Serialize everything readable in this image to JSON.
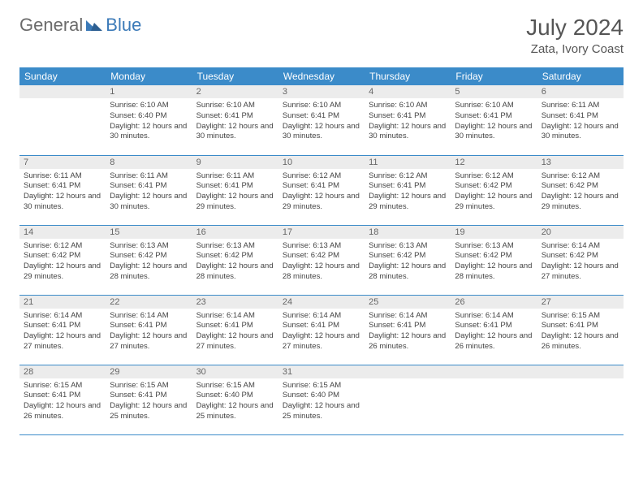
{
  "logo": {
    "general": "General",
    "blue": "Blue"
  },
  "title": "July 2024",
  "location": "Zata, Ivory Coast",
  "colors": {
    "header_bg": "#3b8bc9",
    "header_text": "#ffffff",
    "daynum_bg": "#ececec",
    "border": "#3b8bc9",
    "logo_gray": "#6b6b6b",
    "logo_blue": "#3b7ab8"
  },
  "weekdays": [
    "Sunday",
    "Monday",
    "Tuesday",
    "Wednesday",
    "Thursday",
    "Friday",
    "Saturday"
  ],
  "weeks": [
    [
      {
        "day": "",
        "sunrise": "",
        "sunset": "",
        "daylight": ""
      },
      {
        "day": "1",
        "sunrise": "Sunrise: 6:10 AM",
        "sunset": "Sunset: 6:40 PM",
        "daylight": "Daylight: 12 hours and 30 minutes."
      },
      {
        "day": "2",
        "sunrise": "Sunrise: 6:10 AM",
        "sunset": "Sunset: 6:41 PM",
        "daylight": "Daylight: 12 hours and 30 minutes."
      },
      {
        "day": "3",
        "sunrise": "Sunrise: 6:10 AM",
        "sunset": "Sunset: 6:41 PM",
        "daylight": "Daylight: 12 hours and 30 minutes."
      },
      {
        "day": "4",
        "sunrise": "Sunrise: 6:10 AM",
        "sunset": "Sunset: 6:41 PM",
        "daylight": "Daylight: 12 hours and 30 minutes."
      },
      {
        "day": "5",
        "sunrise": "Sunrise: 6:10 AM",
        "sunset": "Sunset: 6:41 PM",
        "daylight": "Daylight: 12 hours and 30 minutes."
      },
      {
        "day": "6",
        "sunrise": "Sunrise: 6:11 AM",
        "sunset": "Sunset: 6:41 PM",
        "daylight": "Daylight: 12 hours and 30 minutes."
      }
    ],
    [
      {
        "day": "7",
        "sunrise": "Sunrise: 6:11 AM",
        "sunset": "Sunset: 6:41 PM",
        "daylight": "Daylight: 12 hours and 30 minutes."
      },
      {
        "day": "8",
        "sunrise": "Sunrise: 6:11 AM",
        "sunset": "Sunset: 6:41 PM",
        "daylight": "Daylight: 12 hours and 30 minutes."
      },
      {
        "day": "9",
        "sunrise": "Sunrise: 6:11 AM",
        "sunset": "Sunset: 6:41 PM",
        "daylight": "Daylight: 12 hours and 29 minutes."
      },
      {
        "day": "10",
        "sunrise": "Sunrise: 6:12 AM",
        "sunset": "Sunset: 6:41 PM",
        "daylight": "Daylight: 12 hours and 29 minutes."
      },
      {
        "day": "11",
        "sunrise": "Sunrise: 6:12 AM",
        "sunset": "Sunset: 6:41 PM",
        "daylight": "Daylight: 12 hours and 29 minutes."
      },
      {
        "day": "12",
        "sunrise": "Sunrise: 6:12 AM",
        "sunset": "Sunset: 6:42 PM",
        "daylight": "Daylight: 12 hours and 29 minutes."
      },
      {
        "day": "13",
        "sunrise": "Sunrise: 6:12 AM",
        "sunset": "Sunset: 6:42 PM",
        "daylight": "Daylight: 12 hours and 29 minutes."
      }
    ],
    [
      {
        "day": "14",
        "sunrise": "Sunrise: 6:12 AM",
        "sunset": "Sunset: 6:42 PM",
        "daylight": "Daylight: 12 hours and 29 minutes."
      },
      {
        "day": "15",
        "sunrise": "Sunrise: 6:13 AM",
        "sunset": "Sunset: 6:42 PM",
        "daylight": "Daylight: 12 hours and 28 minutes."
      },
      {
        "day": "16",
        "sunrise": "Sunrise: 6:13 AM",
        "sunset": "Sunset: 6:42 PM",
        "daylight": "Daylight: 12 hours and 28 minutes."
      },
      {
        "day": "17",
        "sunrise": "Sunrise: 6:13 AM",
        "sunset": "Sunset: 6:42 PM",
        "daylight": "Daylight: 12 hours and 28 minutes."
      },
      {
        "day": "18",
        "sunrise": "Sunrise: 6:13 AM",
        "sunset": "Sunset: 6:42 PM",
        "daylight": "Daylight: 12 hours and 28 minutes."
      },
      {
        "day": "19",
        "sunrise": "Sunrise: 6:13 AM",
        "sunset": "Sunset: 6:42 PM",
        "daylight": "Daylight: 12 hours and 28 minutes."
      },
      {
        "day": "20",
        "sunrise": "Sunrise: 6:14 AM",
        "sunset": "Sunset: 6:42 PM",
        "daylight": "Daylight: 12 hours and 27 minutes."
      }
    ],
    [
      {
        "day": "21",
        "sunrise": "Sunrise: 6:14 AM",
        "sunset": "Sunset: 6:41 PM",
        "daylight": "Daylight: 12 hours and 27 minutes."
      },
      {
        "day": "22",
        "sunrise": "Sunrise: 6:14 AM",
        "sunset": "Sunset: 6:41 PM",
        "daylight": "Daylight: 12 hours and 27 minutes."
      },
      {
        "day": "23",
        "sunrise": "Sunrise: 6:14 AM",
        "sunset": "Sunset: 6:41 PM",
        "daylight": "Daylight: 12 hours and 27 minutes."
      },
      {
        "day": "24",
        "sunrise": "Sunrise: 6:14 AM",
        "sunset": "Sunset: 6:41 PM",
        "daylight": "Daylight: 12 hours and 27 minutes."
      },
      {
        "day": "25",
        "sunrise": "Sunrise: 6:14 AM",
        "sunset": "Sunset: 6:41 PM",
        "daylight": "Daylight: 12 hours and 26 minutes."
      },
      {
        "day": "26",
        "sunrise": "Sunrise: 6:14 AM",
        "sunset": "Sunset: 6:41 PM",
        "daylight": "Daylight: 12 hours and 26 minutes."
      },
      {
        "day": "27",
        "sunrise": "Sunrise: 6:15 AM",
        "sunset": "Sunset: 6:41 PM",
        "daylight": "Daylight: 12 hours and 26 minutes."
      }
    ],
    [
      {
        "day": "28",
        "sunrise": "Sunrise: 6:15 AM",
        "sunset": "Sunset: 6:41 PM",
        "daylight": "Daylight: 12 hours and 26 minutes."
      },
      {
        "day": "29",
        "sunrise": "Sunrise: 6:15 AM",
        "sunset": "Sunset: 6:41 PM",
        "daylight": "Daylight: 12 hours and 25 minutes."
      },
      {
        "day": "30",
        "sunrise": "Sunrise: 6:15 AM",
        "sunset": "Sunset: 6:40 PM",
        "daylight": "Daylight: 12 hours and 25 minutes."
      },
      {
        "day": "31",
        "sunrise": "Sunrise: 6:15 AM",
        "sunset": "Sunset: 6:40 PM",
        "daylight": "Daylight: 12 hours and 25 minutes."
      },
      {
        "day": "",
        "sunrise": "",
        "sunset": "",
        "daylight": ""
      },
      {
        "day": "",
        "sunrise": "",
        "sunset": "",
        "daylight": ""
      },
      {
        "day": "",
        "sunrise": "",
        "sunset": "",
        "daylight": ""
      }
    ]
  ]
}
